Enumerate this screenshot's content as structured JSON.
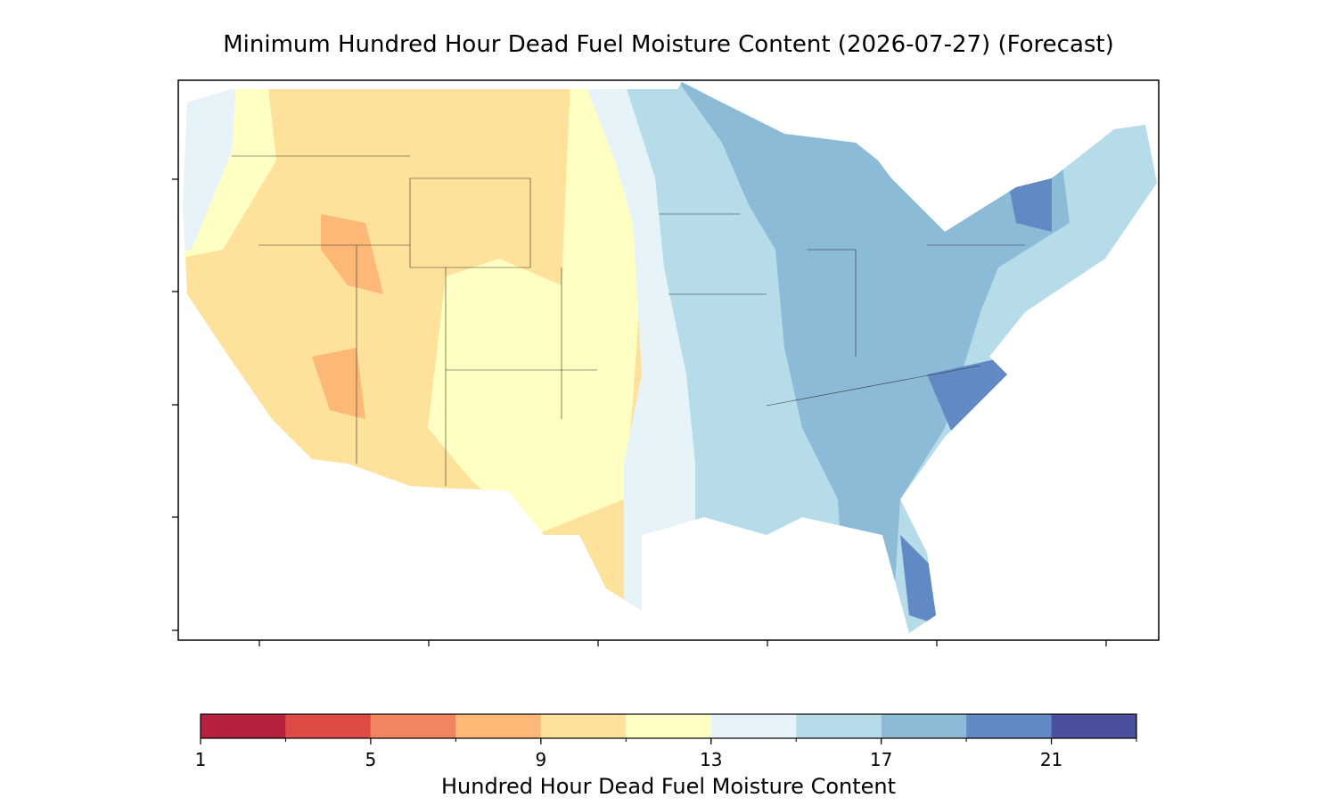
{
  "title": "Minimum Hundred Hour Dead Fuel Moisture Content (2026-07-27) (Forecast)",
  "colorbar": {
    "label": "Hundred Hour Dead Fuel Moisture Content",
    "boundaries": [
      1,
      3,
      5,
      7,
      9,
      11,
      13,
      15,
      17,
      19,
      21,
      23
    ],
    "colors": [
      "#b5213f",
      "#de4b44",
      "#f2845f",
      "#fdb777",
      "#fee29b",
      "#ffffc3",
      "#e6f4f9",
      "#b6dcea",
      "#8cbbd8",
      "#6189c4",
      "#4a4fa0"
    ],
    "ticks": [
      1,
      5,
      9,
      13,
      17,
      21
    ]
  }
}
